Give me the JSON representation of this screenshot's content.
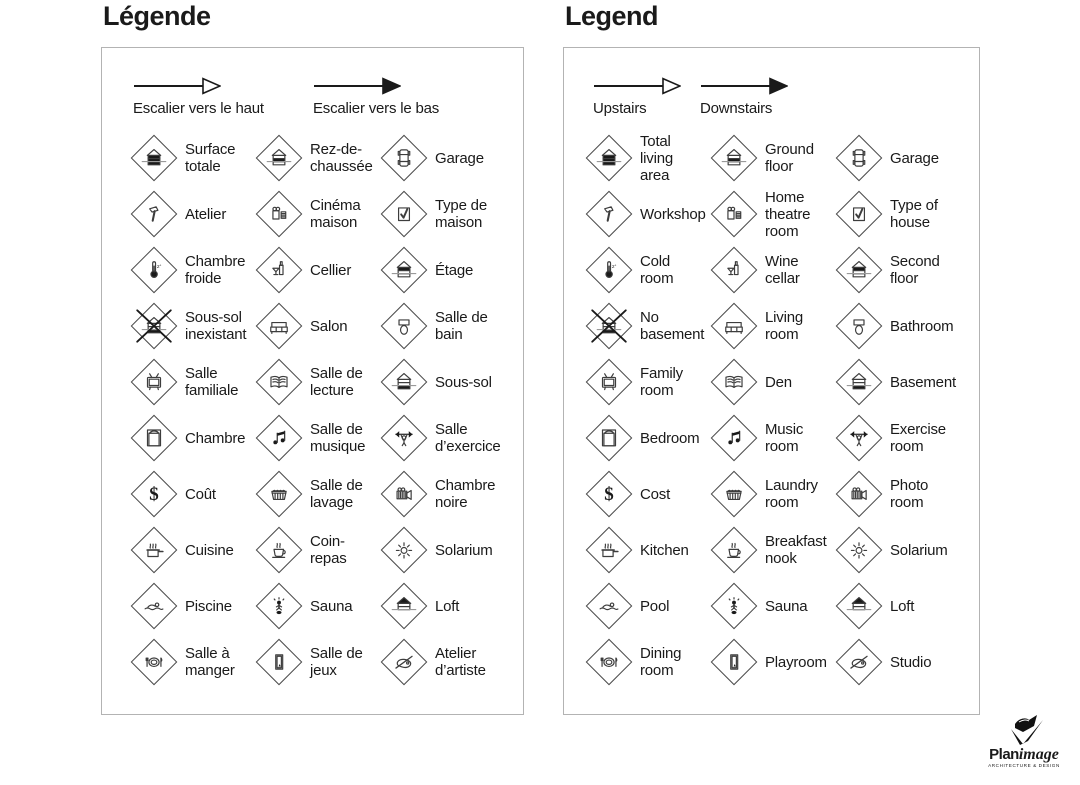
{
  "colors": {
    "text": "#1a1a1a",
    "panel_border": "#b3b3b3",
    "icon_stroke": "#3d3d3d",
    "ground_line": "#999999"
  },
  "panels": [
    {
      "id": "fr",
      "title": "Légende",
      "arrows": [
        {
          "label": "Escalier vers le haut",
          "style": "outline",
          "icon": "up-arrow-icon"
        },
        {
          "label": "Escalier vers le bas",
          "style": "filled",
          "icon": "down-arrow-icon"
        }
      ],
      "items": [
        {
          "icon": "total-area-icon",
          "label": "Surface\ntotale"
        },
        {
          "icon": "ground-floor-icon",
          "label": "Rez-de-\nchaussée"
        },
        {
          "icon": "garage-icon",
          "label": "Garage"
        },
        {
          "icon": "workshop-icon",
          "label": "Atelier"
        },
        {
          "icon": "home-theatre-icon",
          "label": "Cinéma\nmaison"
        },
        {
          "icon": "house-type-icon",
          "label": "Type de\nmaison"
        },
        {
          "icon": "cold-room-icon",
          "label": "Chambre\nfroide"
        },
        {
          "icon": "wine-cellar-icon",
          "label": "Cellier"
        },
        {
          "icon": "second-floor-icon",
          "label": "Étage"
        },
        {
          "icon": "no-basement-icon",
          "label": "Sous-sol\ninexistant"
        },
        {
          "icon": "living-room-icon",
          "label": "Salon"
        },
        {
          "icon": "bathroom-icon",
          "label": "Salle de\nbain"
        },
        {
          "icon": "family-room-icon",
          "label": "Salle\nfamiliale"
        },
        {
          "icon": "den-icon",
          "label": "Salle de\nlecture"
        },
        {
          "icon": "basement-icon",
          "label": "Sous-sol"
        },
        {
          "icon": "bedroom-icon",
          "label": "Chambre"
        },
        {
          "icon": "music-room-icon",
          "label": "Salle de\nmusique"
        },
        {
          "icon": "exercise-room-icon",
          "label": "Salle\nd’exercice"
        },
        {
          "icon": "cost-icon",
          "label": "Coût"
        },
        {
          "icon": "laundry-room-icon",
          "label": "Salle de\nlavage"
        },
        {
          "icon": "photo-room-icon",
          "label": "Chambre\nnoire"
        },
        {
          "icon": "kitchen-icon",
          "label": "Cuisine"
        },
        {
          "icon": "breakfast-nook-icon",
          "label": "Coin-\nrepas"
        },
        {
          "icon": "solarium-icon",
          "label": "Solarium"
        },
        {
          "icon": "pool-icon",
          "label": "Piscine"
        },
        {
          "icon": "sauna-icon",
          "label": "Sauna"
        },
        {
          "icon": "loft-icon",
          "label": "Loft"
        },
        {
          "icon": "dining-room-icon",
          "label": "Salle à\nmanger"
        },
        {
          "icon": "playroom-icon",
          "label": "Salle de\njeux"
        },
        {
          "icon": "studio-icon",
          "label": "Atelier\nd’artiste"
        }
      ]
    },
    {
      "id": "en",
      "title": "Legend",
      "arrows": [
        {
          "label": "Upstairs",
          "style": "outline",
          "icon": "up-arrow-icon"
        },
        {
          "label": "Downstairs",
          "style": "filled",
          "icon": "down-arrow-icon"
        }
      ],
      "items": [
        {
          "icon": "total-area-icon",
          "label": "Total\nliving\narea"
        },
        {
          "icon": "ground-floor-icon",
          "label": "Ground\nfloor"
        },
        {
          "icon": "garage-icon",
          "label": "Garage"
        },
        {
          "icon": "workshop-icon",
          "label": "Workshop"
        },
        {
          "icon": "home-theatre-icon",
          "label": "Home\ntheatre\nroom"
        },
        {
          "icon": "house-type-icon",
          "label": "Type of\nhouse"
        },
        {
          "icon": "cold-room-icon",
          "label": "Cold\nroom"
        },
        {
          "icon": "wine-cellar-icon",
          "label": "Wine\ncellar"
        },
        {
          "icon": "second-floor-icon",
          "label": "Second\nfloor"
        },
        {
          "icon": "no-basement-icon",
          "label": "No\nbasement"
        },
        {
          "icon": "living-room-icon",
          "label": "Living\nroom"
        },
        {
          "icon": "bathroom-icon",
          "label": "Bathroom"
        },
        {
          "icon": "family-room-icon",
          "label": "Family\nroom"
        },
        {
          "icon": "den-icon",
          "label": "Den"
        },
        {
          "icon": "basement-icon",
          "label": "Basement"
        },
        {
          "icon": "bedroom-icon",
          "label": "Bedroom"
        },
        {
          "icon": "music-room-icon",
          "label": "Music\nroom"
        },
        {
          "icon": "exercise-room-icon",
          "label": "Exercise\nroom"
        },
        {
          "icon": "cost-icon",
          "label": "Cost"
        },
        {
          "icon": "laundry-room-icon",
          "label": "Laundry\nroom"
        },
        {
          "icon": "photo-room-icon",
          "label": "Photo\nroom"
        },
        {
          "icon": "kitchen-icon",
          "label": "Kitchen"
        },
        {
          "icon": "breakfast-nook-icon",
          "label": "Breakfast\nnook"
        },
        {
          "icon": "solarium-icon",
          "label": "Solarium"
        },
        {
          "icon": "pool-icon",
          "label": "Pool"
        },
        {
          "icon": "sauna-icon",
          "label": "Sauna"
        },
        {
          "icon": "loft-icon",
          "label": "Loft"
        },
        {
          "icon": "dining-room-icon",
          "label": "Dining\nroom"
        },
        {
          "icon": "playroom-icon",
          "label": "Playroom"
        },
        {
          "icon": "studio-icon",
          "label": "Studio"
        }
      ]
    }
  ],
  "logo": {
    "brand_bold": "Plan",
    "brand_italic": "image",
    "tagline": "ARCHITECTURE & DESIGN"
  }
}
